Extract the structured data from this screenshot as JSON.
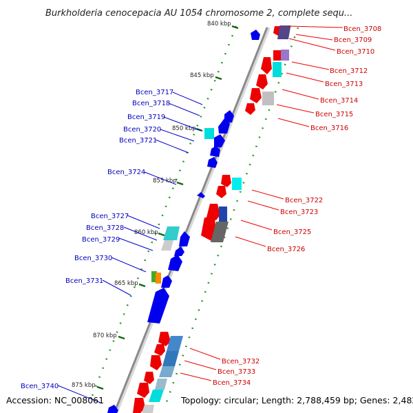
{
  "title": "Burkholderia cenocepacia AU 1054 chromosome 2, complete sequ...",
  "footer": {
    "accession": "Accession: NC_008061",
    "topology": "Topology: circular; Length: 2,788,459 bp; Genes: 2,482"
  },
  "colors": {
    "forward": "#ee0000",
    "reverse": "#0000ee",
    "backbone": "#888888",
    "tick_dots": "#229922"
  },
  "scale_labels": [
    "840 kbp",
    "845 kbp",
    "850 kbp",
    "855 kbp",
    "860 kbp",
    "865 kbp",
    "870 kbp",
    "875 kbp"
  ],
  "genes_right": [
    "Bcen_3708",
    "Bcen_3709",
    "Bcen_3710",
    "Bcen_3712",
    "Bcen_3713",
    "Bcen_3714",
    "Bcen_3715",
    "Bcen_3716",
    "Bcen_3722",
    "Bcen_3723",
    "Bcen_3725",
    "Bcen_3726",
    "Bcen_3732",
    "Bcen_3733",
    "Bcen_3734"
  ],
  "genes_left": [
    "Bcen_3717",
    "Bcen_3718",
    "Bcen_3719",
    "Bcen_3720",
    "Bcen_3721",
    "Bcen_3724",
    "Bcen_3727",
    "Bcen_3728",
    "Bcen_3729",
    "Bcen_3730",
    "Bcen_3731",
    "Bcen_3740"
  ]
}
